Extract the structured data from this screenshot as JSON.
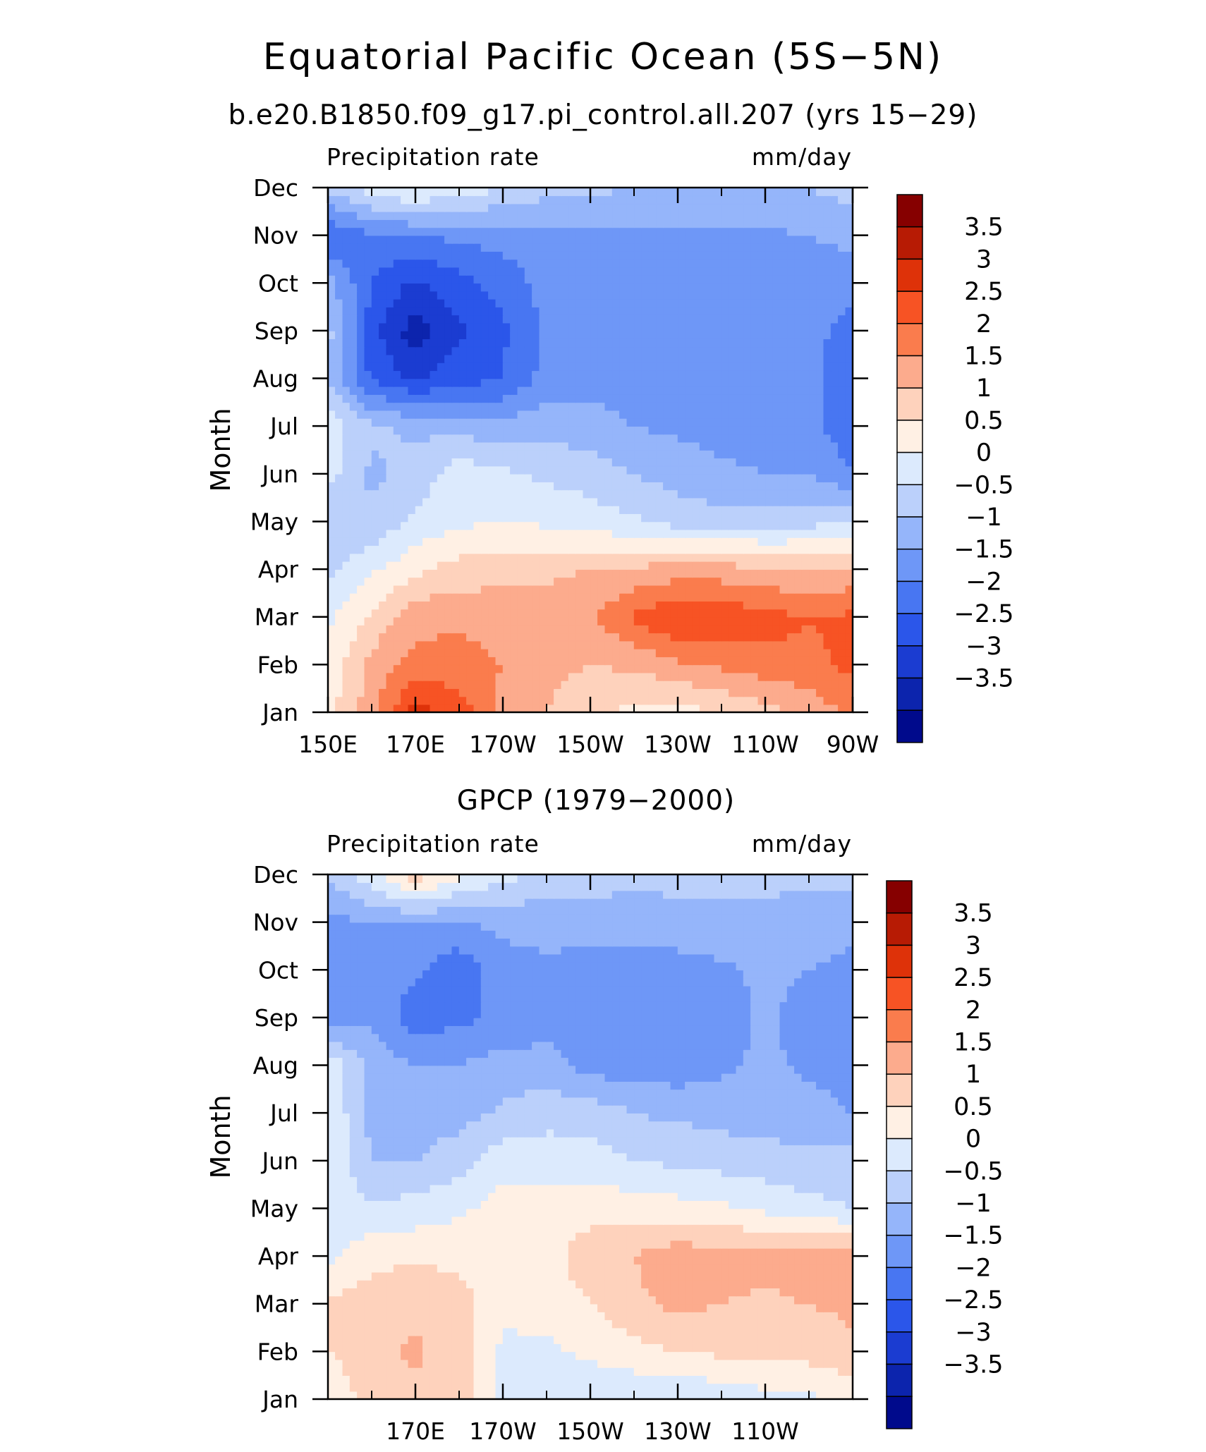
{
  "figure": {
    "title": "Equatorial Pacific Ocean (5S−5N)"
  },
  "colormap": {
    "levels": [
      -3.5,
      -3,
      -2.5,
      -2,
      -1.5,
      -1,
      -0.5,
      0,
      0.5,
      1,
      1.5,
      2,
      2.5,
      3,
      3.5
    ],
    "colors": [
      "#000a8c",
      "#0c24ad",
      "#1b3cd1",
      "#2b56ea",
      "#4876f2",
      "#6e97f7",
      "#95b5fa",
      "#bbd0fb",
      "#dceafd",
      "#fff0e4",
      "#fed2bc",
      "#fcab8d",
      "#fa7c4d",
      "#f75324",
      "#de3209",
      "#b71b04",
      "#860000"
    ],
    "tick_labels": [
      "3.5",
      "3",
      "2.5",
      "2",
      "1.5",
      "1",
      "0.5",
      "0",
      "−0.5",
      "−1",
      "−1.5",
      "−2",
      "−2.5",
      "−3",
      "−3.5"
    ]
  },
  "chart_data": [
    {
      "type": "heatmap",
      "subtitle": "b.e20.B1850.f09_g17.pi_control.all.207 (yrs 15−29)",
      "left_string": "Precipitation rate",
      "right_string": "mm/day",
      "ylabel": "Month",
      "x_ticks": [
        "150E",
        "170E",
        "170W",
        "150W",
        "130W",
        "110W",
        "90W"
      ],
      "y_ticks": [
        "Jan",
        "Feb",
        "Mar",
        "Apr",
        "May",
        "Jun",
        "Jul",
        "Aug",
        "Sep",
        "Oct",
        "Nov",
        "Dec"
      ],
      "x": [
        150,
        160,
        170,
        180,
        190,
        200,
        210,
        220,
        230,
        240,
        250,
        260,
        270
      ],
      "y": [
        "Jan",
        "Feb",
        "Mar",
        "Apr",
        "May",
        "Jun",
        "Jul",
        "Aug",
        "Sep",
        "Oct",
        "Nov",
        "Dec"
      ],
      "values": [
        [
          0.8,
          1.8,
          3.2,
          2.8,
          1.8,
          1.5,
          1.2,
          0.8,
          0.8,
          1.0,
          1.3,
          1.6,
          2.2
        ],
        [
          0.6,
          1.7,
          2.2,
          2.2,
          2.0,
          1.6,
          1.5,
          1.6,
          1.9,
          2.1,
          2.3,
          2.4,
          2.6
        ],
        [
          0.4,
          1.1,
          1.8,
          1.9,
          1.8,
          1.7,
          1.9,
          2.6,
          3.0,
          2.9,
          2.7,
          2.5,
          2.6
        ],
        [
          -0.2,
          0.4,
          0.9,
          1.2,
          1.3,
          1.4,
          1.5,
          1.6,
          1.7,
          1.7,
          1.6,
          1.5,
          1.6
        ],
        [
          -0.5,
          -0.4,
          0.1,
          0.4,
          0.5,
          0.4,
          0.2,
          0.1,
          -0.2,
          -0.3,
          -0.3,
          -0.2,
          0.1
        ],
        [
          0.2,
          -0.6,
          -0.3,
          0.3,
          0.1,
          -0.1,
          -0.2,
          -0.5,
          -0.7,
          -0.9,
          -1.0,
          -1.0,
          -1.5
        ],
        [
          0.3,
          -0.4,
          -0.6,
          -0.7,
          -0.8,
          -0.7,
          -0.8,
          -1.0,
          -1.1,
          -1.2,
          -1.3,
          -1.4,
          -1.8
        ],
        [
          -0.5,
          -2.1,
          -2.6,
          -2.2,
          -2.0,
          -1.3,
          -1.2,
          -1.2,
          -1.3,
          -1.3,
          -1.3,
          -1.4,
          -1.8
        ],
        [
          -0.3,
          -2.3,
          -3.3,
          -2.6,
          -2.1,
          -1.4,
          -1.2,
          -1.3,
          -1.3,
          -1.3,
          -1.3,
          -1.4,
          -1.6
        ],
        [
          -0.8,
          -2.0,
          -2.6,
          -2.2,
          -1.8,
          -1.3,
          -1.2,
          -1.2,
          -1.2,
          -1.2,
          -1.3,
          -1.3,
          -1.4
        ],
        [
          -2.0,
          -1.6,
          -1.5,
          -1.4,
          -1.3,
          -1.2,
          -1.1,
          -1.1,
          -1.1,
          -1.1,
          -1.1,
          -1.0,
          -0.8
        ],
        [
          -0.4,
          0.3,
          0.6,
          0.3,
          0.0,
          -0.3,
          -0.4,
          -0.5,
          -0.5,
          -0.6,
          -0.6,
          -0.5,
          -0.3
        ]
      ],
      "zlim": [
        -4,
        4
      ]
    },
    {
      "type": "heatmap",
      "subtitle": "GPCP (1979−2000)",
      "left_string": "Precipitation rate",
      "right_string": "mm/day",
      "ylabel": "Month",
      "x_ticks": [
        "170E",
        "170W",
        "150W",
        "130W",
        "110W"
      ],
      "y_ticks": [
        "Jan",
        "Feb",
        "Mar",
        "Apr",
        "May",
        "Jun",
        "Jul",
        "Aug",
        "Sep",
        "Oct",
        "Nov",
        "Dec"
      ],
      "x": [
        150,
        160,
        170,
        180,
        190,
        200,
        210,
        220,
        230,
        240,
        250,
        260,
        270
      ],
      "y": [
        "Jan",
        "Feb",
        "Mar",
        "Apr",
        "May",
        "Jun",
        "Jul",
        "Aug",
        "Sep",
        "Oct",
        "Nov",
        "Dec"
      ],
      "values": [
        [
          0.6,
          1.2,
          1.4,
          1.3,
          0.3,
          0.1,
          0.1,
          0.1,
          0.1,
          0.1,
          0.3,
          0.4,
          0.6
        ],
        [
          1.0,
          1.3,
          1.6,
          1.2,
          0.4,
          0.4,
          0.6,
          0.8,
          1.0,
          1.1,
          1.2,
          1.2,
          1.4
        ],
        [
          1.1,
          1.2,
          1.4,
          1.2,
          0.6,
          0.7,
          1.0,
          1.4,
          1.6,
          1.5,
          1.4,
          1.5,
          1.6
        ],
        [
          0.4,
          0.9,
          0.9,
          0.9,
          0.8,
          0.8,
          1.3,
          1.5,
          1.8,
          1.7,
          1.7,
          1.8,
          1.8
        ],
        [
          0.0,
          0.1,
          0.2,
          0.4,
          0.7,
          0.7,
          0.8,
          0.8,
          0.7,
          0.6,
          0.4,
          0.2,
          0.0
        ],
        [
          0.6,
          -0.5,
          -0.5,
          -0.2,
          0.3,
          0.3,
          0.2,
          0.0,
          -0.1,
          -0.2,
          -0.3,
          -0.4,
          -0.3
        ],
        [
          0.5,
          -0.7,
          -0.8,
          -0.7,
          -0.4,
          -0.2,
          -0.2,
          -0.5,
          -0.6,
          -0.7,
          -0.7,
          -0.8,
          -1.0
        ],
        [
          0.5,
          -0.7,
          -1.0,
          -1.0,
          -0.8,
          -0.8,
          -1.2,
          -1.3,
          -1.3,
          -1.1,
          -0.9,
          -1.1,
          -1.2
        ],
        [
          -1.4,
          -1.1,
          -1.8,
          -1.6,
          -1.4,
          -1.2,
          -1.3,
          -1.3,
          -1.4,
          -1.2,
          -0.9,
          -1.2,
          -1.3
        ],
        [
          -1.0,
          -1.1,
          -1.4,
          -1.9,
          -1.2,
          -1.1,
          -1.3,
          -1.4,
          -1.3,
          -1.1,
          -0.9,
          -1.0,
          -1.2
        ],
        [
          -1.2,
          -1.0,
          -1.0,
          -1.0,
          -0.9,
          -0.8,
          -0.7,
          -0.7,
          -0.6,
          -0.6,
          -0.6,
          -0.7,
          -0.8
        ],
        [
          -0.4,
          0.4,
          1.3,
          0.6,
          0.2,
          -0.2,
          -0.3,
          -0.4,
          -0.4,
          -0.4,
          -0.4,
          -0.4,
          -0.4
        ]
      ],
      "zlim": [
        -4,
        4
      ]
    }
  ]
}
